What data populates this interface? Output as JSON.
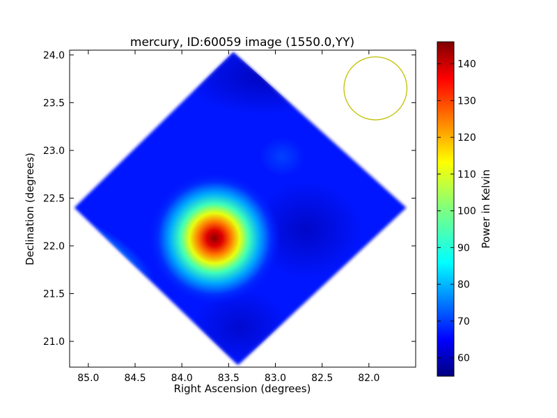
{
  "chart_data": {
    "type": "heatmap",
    "title": "mercury, ID:60059 image (1550.0,YY)",
    "xlabel": "Right Ascension (degrees)",
    "ylabel": "Declination (degrees)",
    "xlim": [
      85.2,
      81.5
    ],
    "ylim": [
      20.73,
      24.05
    ],
    "x_ticks": [
      85.0,
      84.5,
      84.0,
      83.5,
      83.0,
      82.5,
      82.0
    ],
    "x_tick_labels": [
      "85.0",
      "84.5",
      "84.0",
      "83.5",
      "83.0",
      "82.5",
      "82.0"
    ],
    "y_ticks": [
      21.0,
      21.5,
      22.0,
      22.5,
      23.0,
      23.5,
      24.0
    ],
    "y_tick_labels": [
      "21.0",
      "21.5",
      "22.0",
      "22.5",
      "23.0",
      "23.5",
      "24.0"
    ],
    "colorbar": {
      "label": "Power in Kelvin",
      "min": 55,
      "max": 146,
      "ticks": [
        60,
        70,
        80,
        90,
        100,
        110,
        120,
        130,
        140
      ],
      "tick_labels": [
        "60",
        "70",
        "80",
        "90",
        "100",
        "110",
        "120",
        "130",
        "140"
      ],
      "colormap": "jet"
    },
    "footprint": {
      "shape": "diamond",
      "vertices": [
        [
          83.45,
          24.03
        ],
        [
          81.6,
          22.4
        ],
        [
          83.4,
          20.75
        ],
        [
          85.15,
          22.4
        ]
      ],
      "background_value": 63
    },
    "hotspot": {
      "ra": 83.65,
      "dec": 22.08,
      "peak_value": 146
    },
    "beam": {
      "ra": 81.93,
      "dec": 23.65,
      "radius_deg": 0.33,
      "color": "#bfbf00"
    }
  }
}
